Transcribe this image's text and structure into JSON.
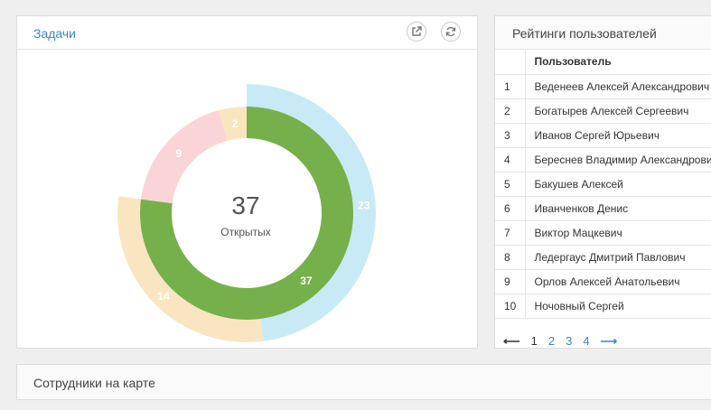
{
  "tasks_panel": {
    "title": "Задачи",
    "open_icon": "external-link-icon",
    "refresh_icon": "refresh-icon"
  },
  "chart_data": {
    "type": "pie",
    "center_value": "37",
    "center_label": "Открытых",
    "inner_series": {
      "values": [
        37,
        9,
        2
      ],
      "labels": [
        "37",
        "9",
        "2"
      ],
      "colors": [
        "#76b04a",
        "#fbd4d8",
        "#f9e6c1"
      ]
    },
    "outer_series": {
      "values": [
        23,
        14
      ],
      "labels": [
        "23",
        "14"
      ],
      "colors": [
        "#c8eaf7",
        "#f9e6c1"
      ]
    }
  },
  "ratings_panel": {
    "title": "Рейтинги пользователей",
    "column_header": "Пользователь",
    "rows": [
      {
        "n": "1",
        "name": "Веденеев Алексей Александрович"
      },
      {
        "n": "2",
        "name": "Богатырев Алексей Сергеевич"
      },
      {
        "n": "3",
        "name": "Иванов Сергей Юрьевич"
      },
      {
        "n": "4",
        "name": "Береснев Владимир Александрович"
      },
      {
        "n": "5",
        "name": "Бакушев Алексей"
      },
      {
        "n": "6",
        "name": "Иванченков Денис"
      },
      {
        "n": "7",
        "name": "Виктор Мацкевич"
      },
      {
        "n": "8",
        "name": "Ледергаус Дмитрий Павлович"
      },
      {
        "n": "9",
        "name": "Орлов Алексей Анатольевич"
      },
      {
        "n": "10",
        "name": "Ночовный Сергей"
      }
    ],
    "pager": {
      "prev": "⟵",
      "pages": [
        "1",
        "2",
        "3",
        "4"
      ],
      "current": "1",
      "next": "⟶"
    }
  },
  "map_panel": {
    "title": "Сотрудники на карте"
  }
}
